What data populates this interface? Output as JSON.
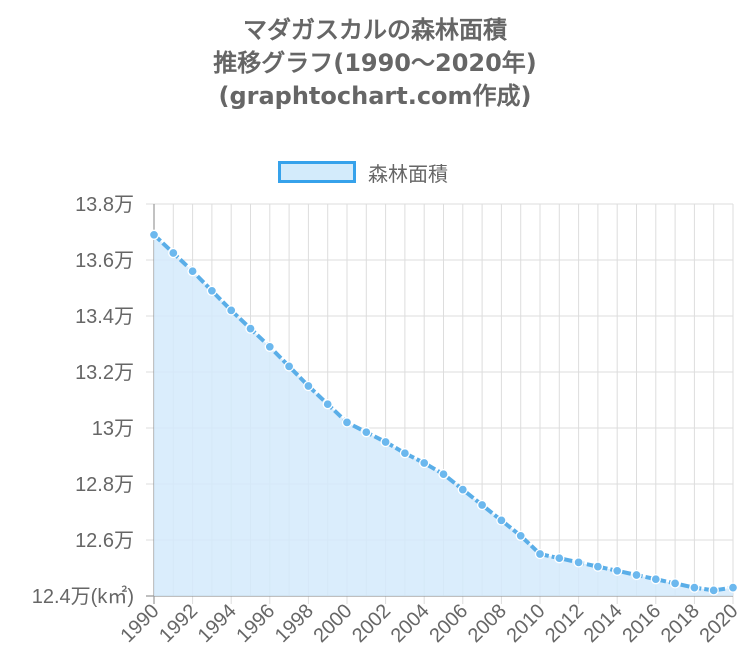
{
  "title_lines": [
    "マダガスカルの森林面積",
    "推移グラフ(1990〜2020年)",
    "(graphtochart.com作成)"
  ],
  "legend": {
    "label": "森林面積"
  },
  "colors": {
    "line": "#5aaee8",
    "fill": "#d4eafb",
    "point": "#6cb8ee",
    "grid": "#dddddd",
    "axis": "#999999"
  },
  "chart_data": {
    "type": "area",
    "title": "マダガスカルの森林面積 推移グラフ(1990〜2020年) (graphtochart.com作成)",
    "xlabel": "",
    "ylabel": "",
    "ylim": [
      124000,
      138000
    ],
    "grid": true,
    "legend_position": "top",
    "x_tick_labels": [
      "1990",
      "1992",
      "1994",
      "1996",
      "1998",
      "2000",
      "2002",
      "2004",
      "2006",
      "2008",
      "2010",
      "2012",
      "2014",
      "2016",
      "2018",
      "2020"
    ],
    "y_tick_labels": [
      "12.4万(k㎡)",
      "12.6万",
      "12.8万",
      "13万",
      "13.2万",
      "13.4万",
      "13.6万",
      "13.8万"
    ],
    "y_tick_values": [
      124000,
      126000,
      128000,
      130000,
      132000,
      134000,
      136000,
      138000
    ],
    "series": [
      {
        "name": "森林面積",
        "x": [
          1990,
          1991,
          1992,
          1993,
          1994,
          1995,
          1996,
          1997,
          1998,
          1999,
          2000,
          2001,
          2002,
          2003,
          2004,
          2005,
          2006,
          2007,
          2008,
          2009,
          2010,
          2011,
          2012,
          2013,
          2014,
          2015,
          2016,
          2017,
          2018,
          2019,
          2020
        ],
        "values": [
          136900,
          136250,
          135600,
          134900,
          134200,
          133550,
          132900,
          132200,
          131500,
          130850,
          130200,
          129850,
          129500,
          129100,
          128750,
          128350,
          127800,
          127250,
          126700,
          126150,
          125500,
          125350,
          125200,
          125050,
          124900,
          124750,
          124600,
          124450,
          124300,
          124200,
          124300
        ]
      }
    ]
  }
}
